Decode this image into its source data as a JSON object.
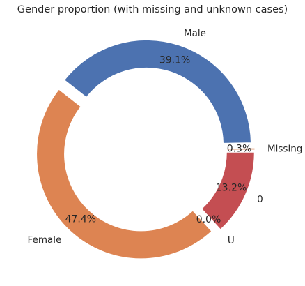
{
  "chart_data": {
    "type": "pie",
    "style": "donut",
    "title": "Gender proportion (with missing and unknown cases)",
    "start_angle_deg": 0,
    "direction": "counterclockwise",
    "exploded": true,
    "slices": [
      {
        "label": "Missing",
        "value": 0.3,
        "pct_label": "0.3%",
        "color": "#dd8452"
      },
      {
        "label": "Male",
        "value": 39.1,
        "pct_label": "39.1%",
        "color": "#4c72b0"
      },
      {
        "label": "Female",
        "value": 47.4,
        "pct_label": "47.4%",
        "color": "#dd8452"
      },
      {
        "label": "U",
        "value": 0.0,
        "pct_label": "0.0%",
        "color": "#55a868"
      },
      {
        "label": "0",
        "value": 13.2,
        "pct_label": "13.2%",
        "color": "#c44e52"
      }
    ]
  }
}
